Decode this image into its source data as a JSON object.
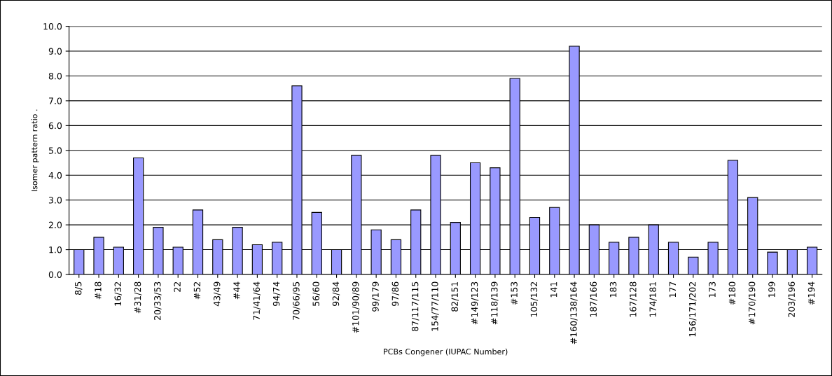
{
  "chart_data": {
    "type": "bar",
    "xlabel": "PCBs Congener (IUPAC Number)",
    "ylabel": "Isomer pattern ratio .",
    "categories": [
      "8/5",
      "#18",
      "16/32",
      "#31/28",
      "20/33/53",
      "22",
      "#52",
      "43/49",
      "#44",
      "71/41/64",
      "94/74",
      "70/66/95",
      "56/60",
      "92/84",
      "#101/90/89",
      "99/179",
      "97/86",
      "87/117/115",
      "154/77/110",
      "82/151",
      "#149/123",
      "#118/139",
      "#153",
      "105/132",
      "141",
      "#160/138/164",
      "187/166",
      "183",
      "167/128",
      "174/181",
      "177",
      "156/171/202",
      "173",
      "#180",
      "#170/190",
      "199",
      "203/196",
      "#194"
    ],
    "values": [
      1.0,
      1.5,
      1.1,
      4.7,
      1.9,
      1.1,
      2.6,
      1.4,
      1.9,
      1.2,
      1.3,
      7.6,
      2.5,
      1.0,
      4.8,
      1.8,
      1.4,
      2.6,
      4.8,
      2.1,
      4.5,
      4.3,
      7.9,
      2.3,
      2.7,
      9.2,
      2.0,
      1.3,
      1.5,
      2.0,
      1.3,
      0.7,
      1.3,
      4.6,
      3.1,
      0.9,
      1.0,
      1.1
    ],
    "color": "#9999ff",
    "ylim": [
      0,
      10
    ],
    "yticks": [
      {
        "value": 0,
        "label": "0.0"
      },
      {
        "value": 1,
        "label": "1.0"
      },
      {
        "value": 2,
        "label": "2.0"
      },
      {
        "value": 3,
        "label": "3.0"
      },
      {
        "value": 4,
        "label": "4.0"
      },
      {
        "value": 5,
        "label": "5.0"
      },
      {
        "value": 6,
        "label": "6.0"
      },
      {
        "value": 7,
        "label": "7.0"
      },
      {
        "value": 8,
        "label": "8.0"
      },
      {
        "value": 9,
        "label": "9.0"
      },
      {
        "value": 10,
        "label": "10.0"
      }
    ],
    "grid": "y"
  }
}
